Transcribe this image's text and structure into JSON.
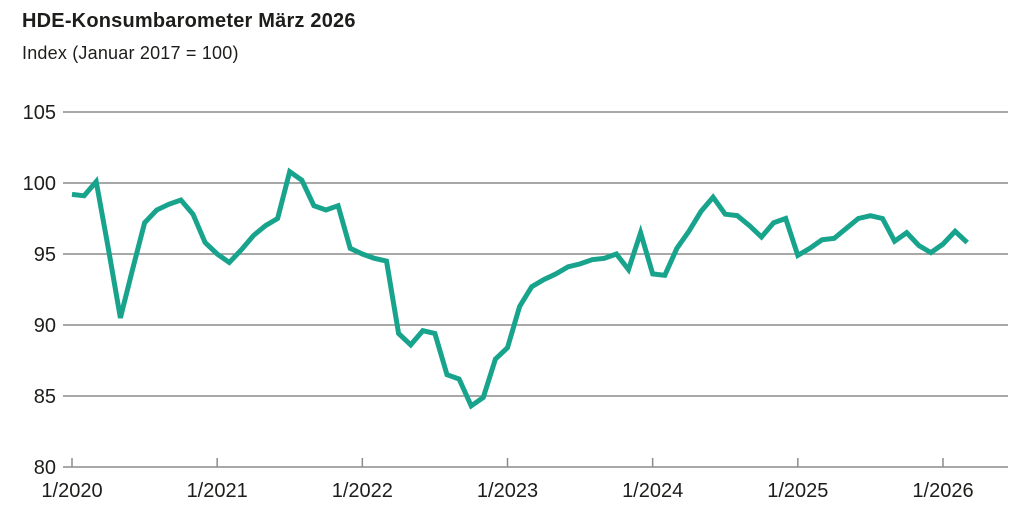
{
  "header": {
    "title": "HDE-Konsumbarometer März 2026",
    "subtitle": "Index (Januar 2017 = 100)"
  },
  "colors": {
    "line": "#18a48c",
    "grid": "#8c8c8c",
    "axis": "#8c8c8c",
    "label_text": "#1d1d1b"
  },
  "chart_data": {
    "type": "line",
    "title": "HDE-Konsumbarometer März 2026",
    "subtitle": "Index (Januar 2017 = 100)",
    "ylabel": "Index (Januar 2017 = 100)",
    "xlabel": "",
    "ylim": [
      80,
      105
    ],
    "y_ticks": [
      80,
      85,
      90,
      95,
      100,
      105
    ],
    "grid": "horizontal",
    "legend": "none",
    "x_tick_labels": [
      "1/2020",
      "1/2021",
      "1/2022",
      "1/2023",
      "1/2024",
      "1/2025",
      "1/2026"
    ],
    "x_unit": "month, first point = Januar 2020, last point = März 2026",
    "series": [
      {
        "name": "HDE-Konsumbarometer",
        "values": [
          99.2,
          99.1,
          100.1,
          95.4,
          90.5,
          93.9,
          97.2,
          98.1,
          98.5,
          98.8,
          97.8,
          95.8,
          95.0,
          94.4,
          95.3,
          96.3,
          97.0,
          97.5,
          100.8,
          100.2,
          98.4,
          98.1,
          98.4,
          95.4,
          95.0,
          94.7,
          94.5,
          89.4,
          88.6,
          89.6,
          89.4,
          86.5,
          86.2,
          84.3,
          84.9,
          87.6,
          88.4,
          91.3,
          92.7,
          93.2,
          93.6,
          94.1,
          94.3,
          94.6,
          94.7,
          95.0,
          93.9,
          96.5,
          93.6,
          93.5,
          95.4,
          96.6,
          98.0,
          99.0,
          97.8,
          97.7,
          97.0,
          96.2,
          97.2,
          97.5,
          94.9,
          95.4,
          96.0,
          96.1,
          96.8,
          97.5,
          97.7,
          97.5,
          95.9,
          96.5,
          95.6,
          95.1,
          95.7,
          96.6,
          95.8
        ]
      }
    ]
  }
}
